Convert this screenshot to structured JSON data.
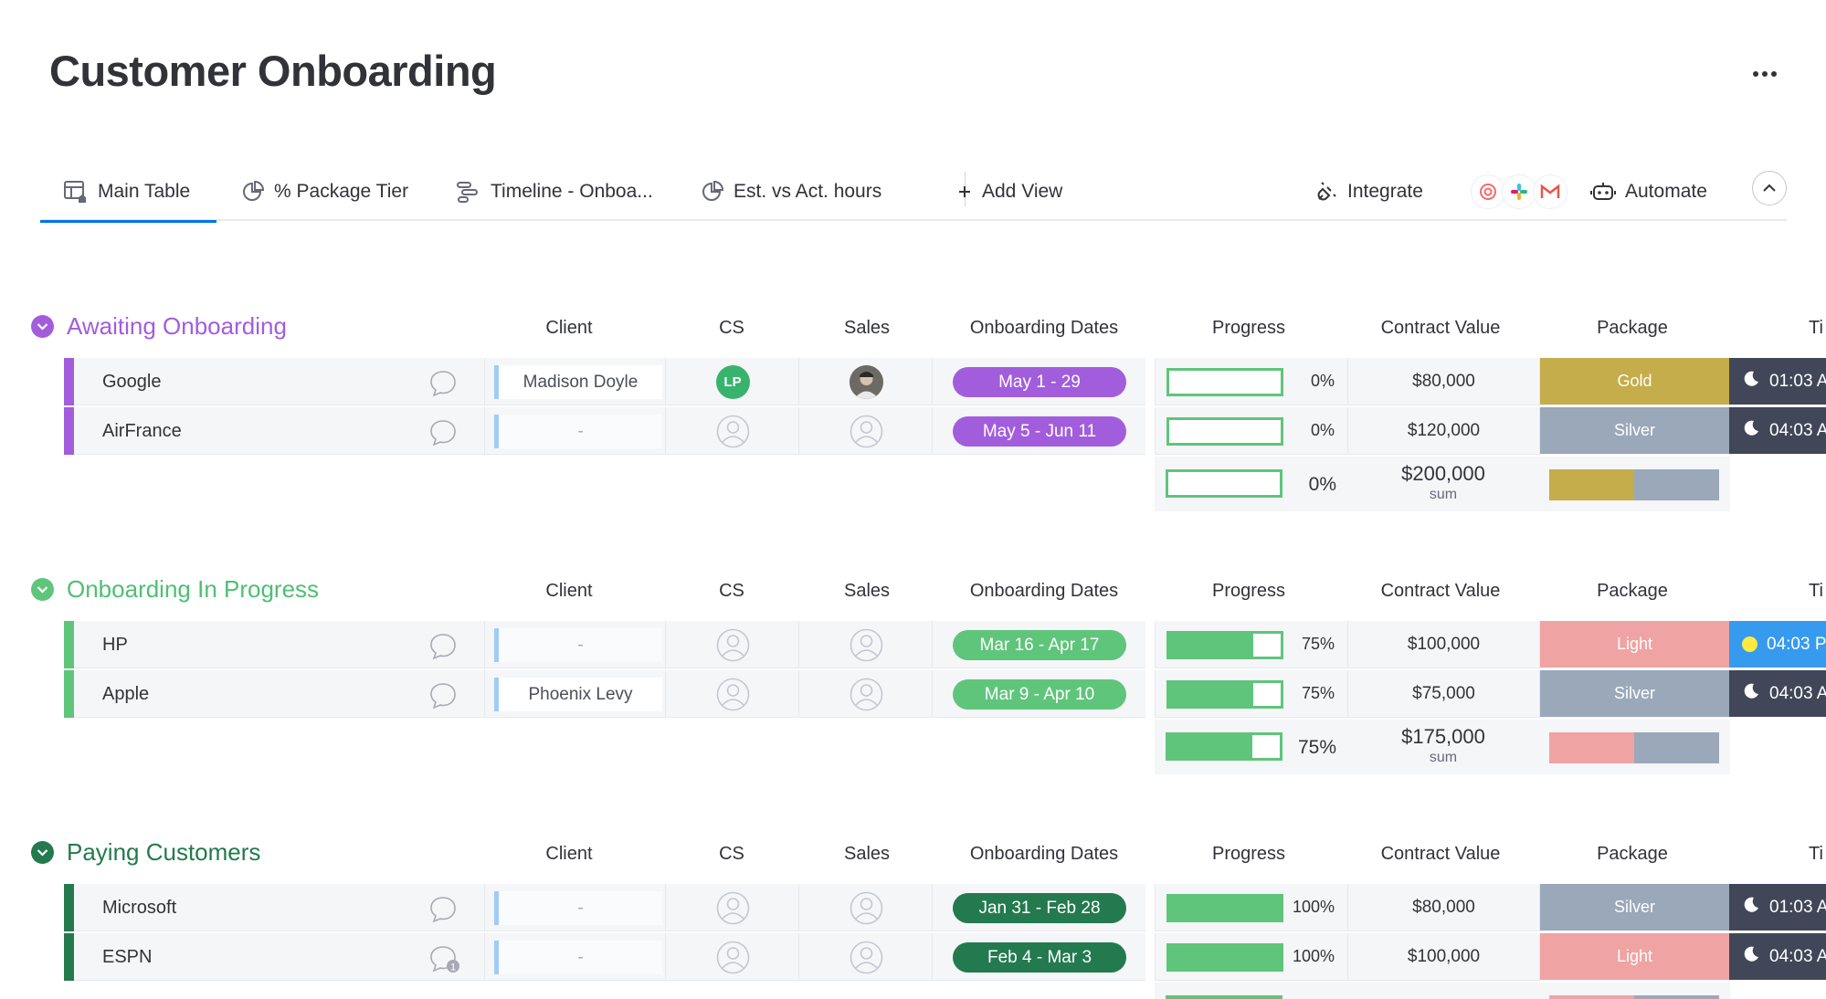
{
  "page": {
    "title": "Customer Onboarding"
  },
  "tabs": [
    {
      "label": "Main Table",
      "icon": "table-home-icon",
      "active": true
    },
    {
      "label": "% Package Tier",
      "icon": "pie-chart-icon"
    },
    {
      "label": "Timeline - Onboa...",
      "icon": "timeline-icon"
    },
    {
      "label": "Est. vs Act. hours",
      "icon": "pie-chart-icon"
    },
    {
      "label": "Add View",
      "icon": "plus-icon"
    }
  ],
  "toolbar": {
    "integrate": "Integrate",
    "automate": "Automate"
  },
  "integrations": [
    {
      "name": "help-integration-icon",
      "color": "#f56b6b"
    },
    {
      "name": "slack-icon",
      "color": "#36c5f0"
    },
    {
      "name": "gmail-icon",
      "color": "#e8544b"
    }
  ],
  "columns": {
    "client": "Client",
    "cs": "CS",
    "sales": "Sales",
    "dates": "Onboarding Dates",
    "progress": "Progress",
    "value": "Contract Value",
    "package": "Package",
    "time": "Ti"
  },
  "colors": {
    "purple": "#a25ddc",
    "green": "#5fc57b",
    "dark_green": "#237a4e",
    "gold": "#c4ad4a",
    "silver": "#9aa8ba",
    "light": "#f0a3a3"
  },
  "groups": [
    {
      "title": "Awaiting Onboarding",
      "color": "#a25ddc",
      "title_color": "#a25ddc",
      "items": [
        {
          "name": "Google",
          "client": "Madison Doyle",
          "cs": "LP",
          "sales": "photo",
          "dates": "May 1 - 29",
          "progress": 0,
          "progress_label": "0%",
          "value": "$80,000",
          "package": "Gold",
          "pkg_color": "#c4ad4a",
          "time": "01:03 A",
          "time_icon": "moon",
          "comments": 0
        },
        {
          "name": "AirFrance",
          "client": "-",
          "cs": "",
          "sales": "",
          "dates": "May 5 - Jun 11",
          "progress": 0,
          "progress_label": "0%",
          "value": "$120,000",
          "package": "Silver",
          "pkg_color": "#9aa8ba",
          "time": "04:03 A",
          "time_icon": "moon",
          "comments": 0
        }
      ],
      "summary": {
        "progress": 0,
        "progress_label": "0%",
        "value": "$200,000",
        "value_label": "sum",
        "segments": [
          {
            "color": "#c4ad4a",
            "share": 0.5
          },
          {
            "color": "#9aa8ba",
            "share": 0.5
          }
        ]
      }
    },
    {
      "title": "Onboarding In Progress",
      "color": "#5fc57b",
      "title_color": "#4fbf73",
      "items": [
        {
          "name": "HP",
          "client": "-",
          "cs": "",
          "sales": "",
          "dates": "Mar 16 - Apr 17",
          "progress": 0.75,
          "progress_label": "75%",
          "value": "$100,000",
          "package": "Light",
          "pkg_color": "#f0a3a3",
          "time": "04:03 P",
          "time_icon": "sun",
          "comments": 0
        },
        {
          "name": "Apple",
          "client": "Phoenix Levy",
          "cs": "",
          "sales": "",
          "dates": "Mar 9 - Apr 10",
          "progress": 0.75,
          "progress_label": "75%",
          "value": "$75,000",
          "package": "Silver",
          "pkg_color": "#9aa8ba",
          "time": "04:03 A",
          "time_icon": "moon",
          "comments": 0
        }
      ],
      "summary": {
        "progress": 0.75,
        "progress_label": "75%",
        "value": "$175,000",
        "value_label": "sum",
        "segments": [
          {
            "color": "#f0a3a3",
            "share": 0.5
          },
          {
            "color": "#9aa8ba",
            "share": 0.5
          }
        ]
      }
    },
    {
      "title": "Paying Customers",
      "color": "#237a4e",
      "title_color": "#237a4e",
      "items": [
        {
          "name": "Microsoft",
          "client": "-",
          "cs": "",
          "sales": "",
          "dates": "Jan 31 - Feb 28",
          "progress": 1,
          "progress_label": "100%",
          "value": "$80,000",
          "package": "Silver",
          "pkg_color": "#9aa8ba",
          "time": "01:03 A",
          "time_icon": "moon",
          "comments": 0
        },
        {
          "name": "ESPN",
          "client": "-",
          "cs": "",
          "sales": "",
          "dates": "Feb 4 - Mar 3",
          "progress": 1,
          "progress_label": "100%",
          "value": "$100,000",
          "package": "Light",
          "pkg_color": "#f0a3a3",
          "time": "04:03 A",
          "time_icon": "moon",
          "comments": 1
        }
      ]
    }
  ]
}
